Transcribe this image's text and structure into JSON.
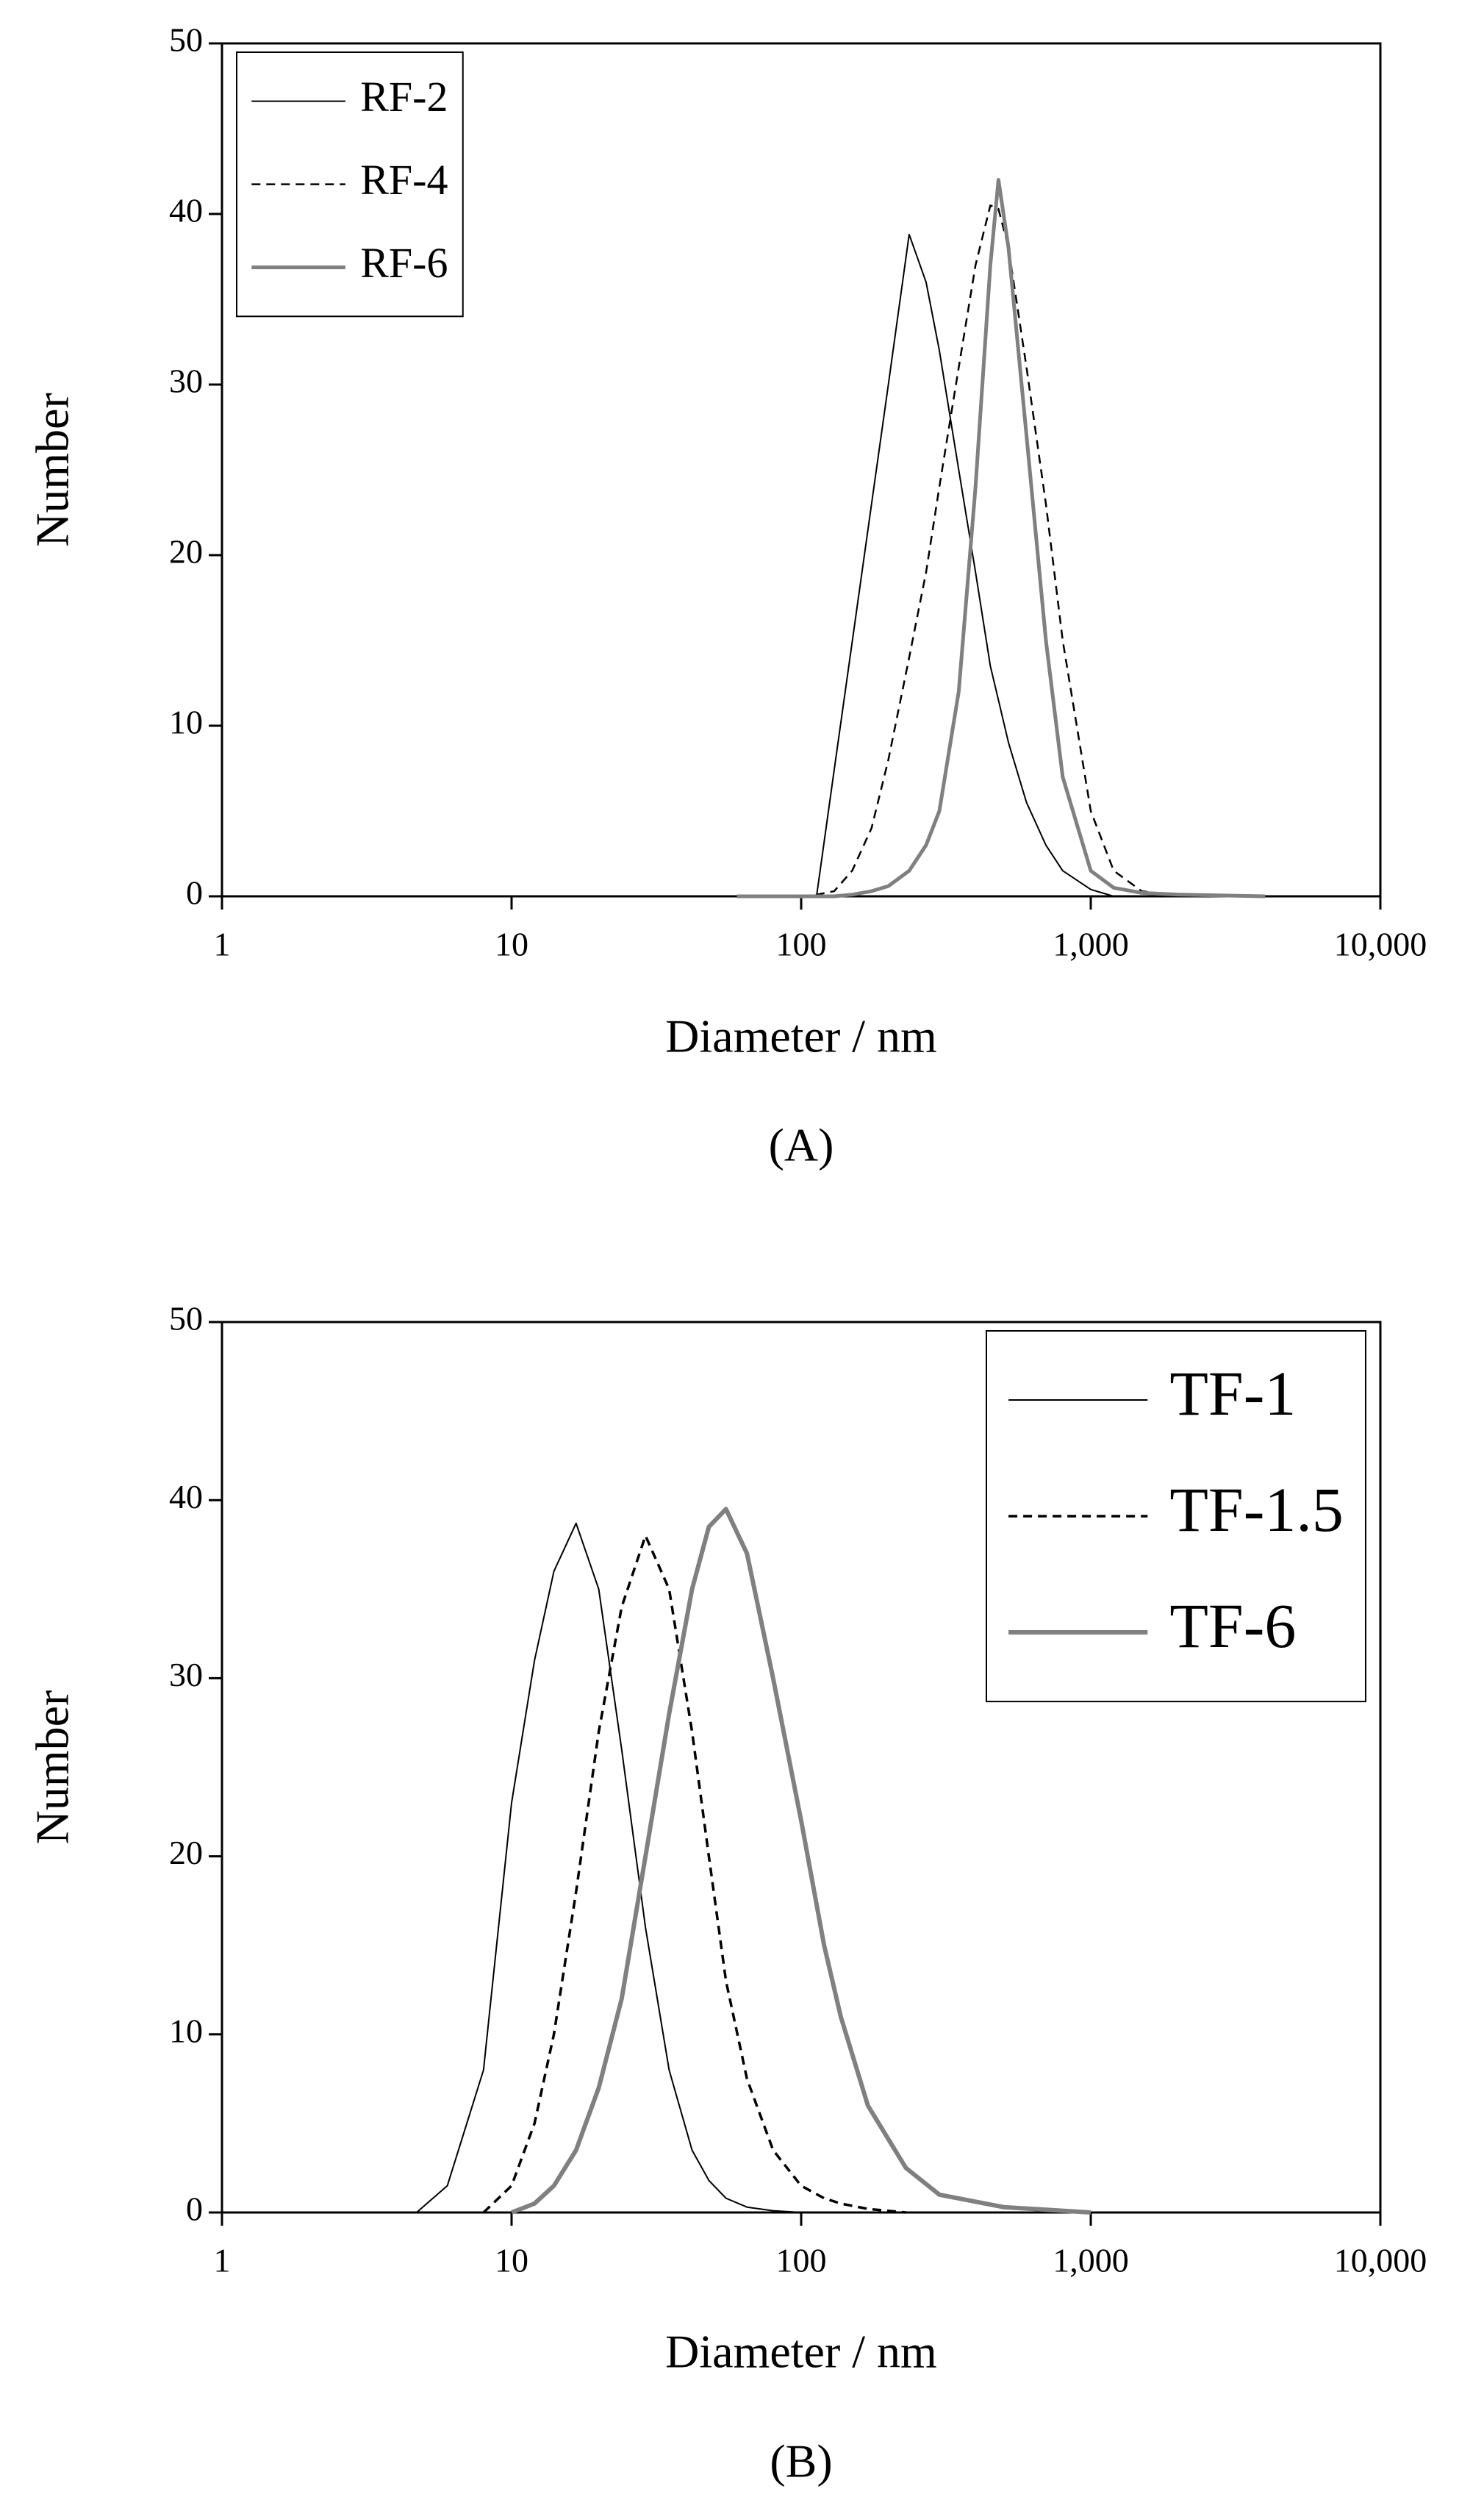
{
  "chart_data": [
    {
      "type": "line",
      "caption": "(A)",
      "xlabel": "Diameter / nm",
      "ylabel": "Number",
      "xscale": "log",
      "legend": "upper left",
      "x": [
        60,
        100,
        113,
        130,
        150,
        175,
        200,
        236,
        270,
        300,
        350,
        400,
        450,
        480,
        520,
        600,
        700,
        800,
        1000,
        1200,
        1500,
        2000,
        4000,
        10000
      ],
      "series": [
        {
          "name": "RF-2",
          "color": "#000000",
          "dash": "solid",
          "width": 2,
          "values": [
            null,
            null,
            0,
            7.4,
            14.9,
            23,
            30,
            38.8,
            36,
            32,
            25,
            19,
            13.5,
            11.5,
            9,
            5.5,
            3,
            1.5,
            0.4,
            0,
            null,
            null,
            null,
            null
          ]
        },
        {
          "name": "RF-4",
          "color": "#000000",
          "dash": "dashed",
          "width": 2.5,
          "values": [
            null,
            0,
            0.1,
            0.3,
            1.5,
            4,
            8,
            14,
            19,
            24,
            31,
            37,
            40.5,
            40.3,
            38,
            31,
            23,
            15,
            5,
            1.5,
            0.3,
            0,
            null,
            null
          ]
        },
        {
          "name": "RF-6",
          "color": "#808080",
          "dash": "solid",
          "width": 5,
          "values": [
            0,
            0,
            0,
            0,
            0.1,
            0.3,
            0.6,
            1.5,
            3,
            5,
            12,
            24,
            37,
            42,
            38,
            27,
            15,
            7,
            1.5,
            0.5,
            0.2,
            0.1,
            0,
            null
          ]
        }
      ],
      "xlim": [
        1,
        10000
      ],
      "xticks": [
        1,
        10,
        100,
        {
          "value": 1000,
          "label": "1,000"
        },
        {
          "value": 10000,
          "label": "10,000"
        }
      ],
      "ylim": [
        0,
        50
      ],
      "yticks": [
        0,
        10,
        20,
        30,
        40,
        50
      ]
    },
    {
      "type": "line",
      "caption": "(B)",
      "xlabel": "Diameter / nm",
      "ylabel": "Number",
      "xscale": "log",
      "legend": "upper right",
      "x": [
        4.7,
        6,
        8,
        10,
        12,
        14,
        16.7,
        20,
        24,
        29,
        35,
        42,
        48,
        55,
        65,
        80,
        100,
        120,
        137,
        170,
        230,
        300,
        500,
        1000
      ],
      "series": [
        {
          "name": "TF-1",
          "color": "#000000",
          "dash": "solid",
          "width": 2,
          "values": [
            0,
            1.5,
            8,
            23,
            31,
            36,
            38.7,
            35,
            26,
            16,
            8,
            3.5,
            1.8,
            0.8,
            0.3,
            0.1,
            0,
            0,
            0,
            null,
            null,
            null,
            null,
            null
          ]
        },
        {
          "name": "TF-1.5",
          "color": "#000000",
          "dash": "dashed",
          "width": 3.5,
          "values": [
            null,
            null,
            0,
            1.5,
            5,
            10,
            18,
            27,
            34,
            38,
            35,
            27,
            20,
            13,
            7.5,
            3.5,
            1.5,
            0.8,
            0.5,
            0.2,
            0,
            null,
            null,
            null
          ]
        },
        {
          "name": "TF-6",
          "color": "#808080",
          "dash": "solid",
          "width": 6,
          "values": [
            null,
            null,
            null,
            0,
            0.5,
            1.5,
            3.5,
            7,
            12,
            20,
            28,
            35,
            38.5,
            39.5,
            37,
            30,
            22,
            15,
            11,
            6,
            2.5,
            1,
            0.3,
            0
          ]
        }
      ],
      "xlim": [
        1,
        10000
      ],
      "xticks": [
        1,
        10,
        100,
        {
          "value": 1000,
          "label": "1,000"
        },
        {
          "value": 10000,
          "label": "10,000"
        }
      ],
      "ylim": [
        0,
        50
      ],
      "yticks": [
        0,
        10,
        20,
        30,
        40,
        50
      ]
    }
  ]
}
